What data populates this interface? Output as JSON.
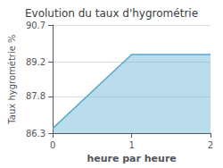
{
  "chart_data": {
    "type": "area",
    "title": "Evolution du taux d'hygrométrie",
    "xlabel": "heure par heure",
    "ylabel": "Taux hygrométrie %",
    "x": [
      0,
      1,
      2
    ],
    "values": [
      86.5,
      89.5,
      89.5
    ],
    "color": "#55aacc",
    "xlim": [
      0,
      2
    ],
    "ylim": [
      86.3,
      90.7
    ],
    "xticks": [
      0,
      1,
      2
    ],
    "yticks": [
      86.3,
      87.8,
      89.2,
      90.7
    ],
    "grid": true
  }
}
